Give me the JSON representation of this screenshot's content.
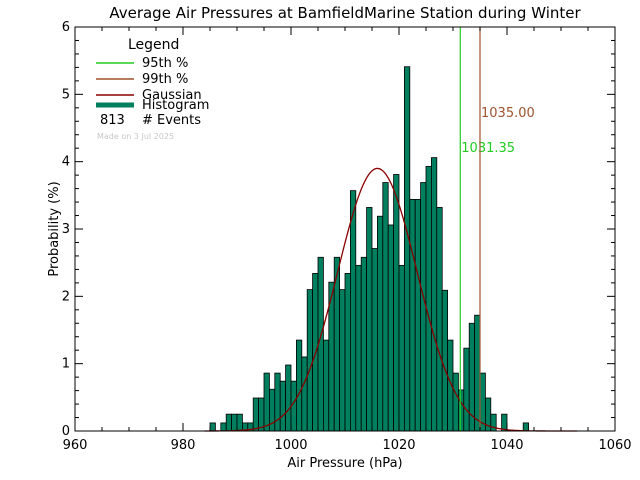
{
  "chart_data": {
    "type": "bar",
    "title": "Average Air Pressures at BamfieldMarine Station during Winter",
    "xlabel": "Air Pressure (hPa)",
    "ylabel": "Probability (%)",
    "xlim": [
      960,
      1060
    ],
    "ylim": [
      0,
      6
    ],
    "x_ticks": [
      "960",
      "980",
      "1000",
      "1020",
      "1040",
      "1060"
    ],
    "y_ticks": [
      "0",
      "1",
      "2",
      "3",
      "4",
      "5",
      "6"
    ],
    "bin_width": 1,
    "histogram": {
      "x": [
        984,
        985,
        986,
        987,
        988,
        989,
        990,
        991,
        992,
        993,
        994,
        995,
        996,
        997,
        998,
        999,
        1000,
        1001,
        1002,
        1003,
        1004,
        1005,
        1006,
        1007,
        1008,
        1009,
        1010,
        1011,
        1012,
        1013,
        1014,
        1015,
        1016,
        1017,
        1018,
        1019,
        1020,
        1021,
        1022,
        1023,
        1024,
        1025,
        1026,
        1027,
        1028,
        1029,
        1030,
        1031,
        1032,
        1033,
        1034,
        1035,
        1036,
        1037,
        1038,
        1039,
        1040,
        1041,
        1042,
        1043
      ],
      "values": [
        0.0,
        0.12,
        0.0,
        0.12,
        0.25,
        0.25,
        0.25,
        0.12,
        0.12,
        0.49,
        0.49,
        0.86,
        0.62,
        0.86,
        0.74,
        0.98,
        0.74,
        1.35,
        1.1,
        2.1,
        2.34,
        2.58,
        1.35,
        2.21,
        2.58,
        2.1,
        2.34,
        3.57,
        2.46,
        2.58,
        3.32,
        2.71,
        3.19,
        3.69,
        3.06,
        3.81,
        2.46,
        5.41,
        3.44,
        3.44,
        3.69,
        3.93,
        4.06,
        3.32,
        2.09,
        1.35,
        0.86,
        0.61,
        1.23,
        1.6,
        1.72,
        0.86,
        0.49,
        0.25,
        0.0,
        0.25,
        0.0,
        0.0,
        0.0,
        0.12
      ]
    },
    "gaussian": {
      "label": "Gaussian",
      "mean": 1016.0,
      "sigma": 7.35,
      "peak": 3.9,
      "x_range": [
        984,
        1053
      ]
    },
    "percentiles": [
      {
        "label": "95th %",
        "value": 1031.35,
        "value_text": "1031.35",
        "color": "#22cc22"
      },
      {
        "label": "99th %",
        "value": 1035.0,
        "value_text": "1035.00",
        "color": "#a0522d"
      }
    ],
    "legend": {
      "title": "Legend",
      "placement": "top-left",
      "items": [
        {
          "label": "95th  %",
          "color": "#22cc22",
          "style": "line"
        },
        {
          "label": "99th  %",
          "color": "#a0522d",
          "style": "line"
        },
        {
          "label": "Gaussian",
          "color": "#8b0000",
          "style": "line"
        },
        {
          "label": "Histogram",
          "color": "#007f5f",
          "style": "thick"
        }
      ],
      "events_count": "813",
      "events_label": "# Events",
      "made_on": "Made on 3 Jul 2025"
    },
    "colors": {
      "histogram_fill": "#007f5f",
      "histogram_edge": "#000000",
      "gaussian": "#8b0000",
      "axis": "#000000"
    }
  }
}
